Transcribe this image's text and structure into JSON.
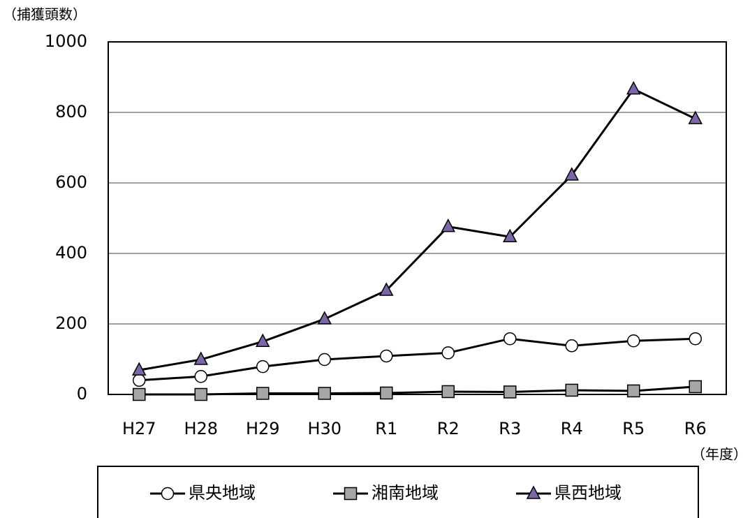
{
  "chart_data": {
    "type": "line",
    "y_label": "（捕獲頭数）",
    "x_label": "（年度）",
    "categories": [
      "H27",
      "H28",
      "H29",
      "H30",
      "R1",
      "R2",
      "R3",
      "R4",
      "R5",
      "R6"
    ],
    "series": [
      {
        "name": "県央地域",
        "color": "#ffffff",
        "marker": "circle",
        "values": [
          40,
          51,
          79,
          99,
          109,
          118,
          158,
          138,
          152,
          158
        ]
      },
      {
        "name": "湘南地域",
        "color": "#a6a6a6",
        "marker": "square",
        "values": [
          0,
          0,
          3,
          3,
          4,
          8,
          7,
          12,
          10,
          22
        ]
      },
      {
        "name": "県西地域",
        "color": "#7b67a6",
        "marker": "triangle",
        "values": [
          69,
          99,
          150,
          214,
          295,
          476,
          447,
          622,
          866,
          782
        ]
      }
    ],
    "ylim": [
      0,
      1000
    ],
    "yticks": [
      0,
      200,
      400,
      600,
      800,
      1000
    ],
    "grid": true
  }
}
